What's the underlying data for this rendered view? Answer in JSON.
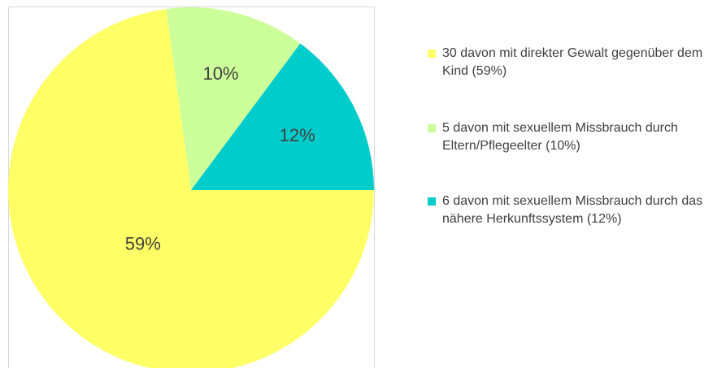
{
  "chart_data": {
    "type": "pie",
    "categories": [
      "30 davon mit direkter Gewalt gegenüber dem Kind (59%)",
      "5 davon mit sexuellem Missbrauch durch Eltern/Pflegeelter (10%)",
      "6 davon mit sexuellem Missbrauch durch das nähere Herkunftssystem (12%)"
    ],
    "values": [
      59,
      10,
      12
    ],
    "value_labels": [
      "59%",
      "10%",
      "12%"
    ],
    "colors": [
      "#ffff66",
      "#ccff99",
      "#00cccc"
    ],
    "legend": "right"
  }
}
